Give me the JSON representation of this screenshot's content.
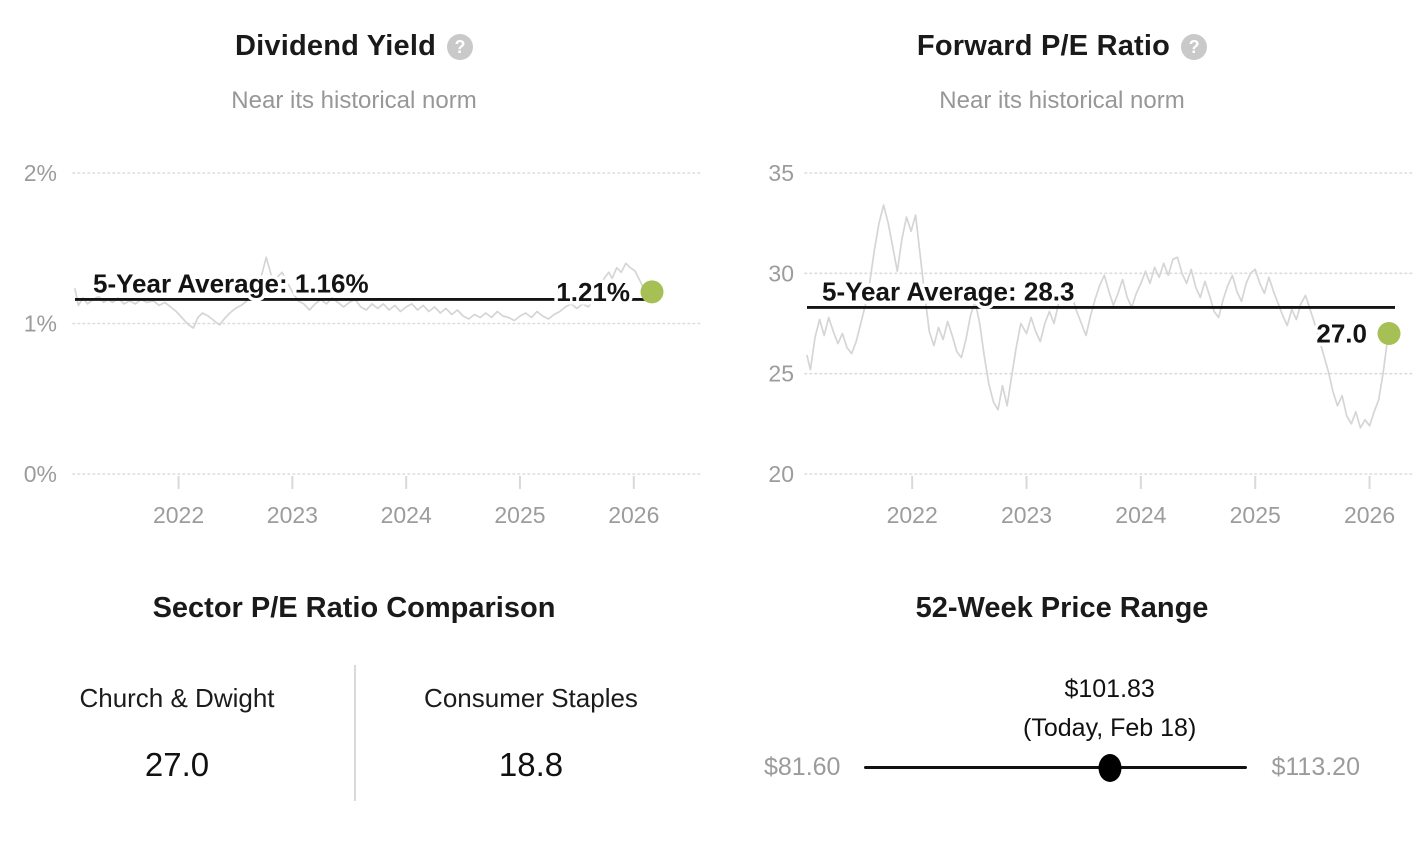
{
  "colors": {
    "accent_green": "#a6c055",
    "series_gray": "#d5d5d5",
    "average_line": "#141414",
    "grid_gray": "#dcdcdc",
    "tick_text_gray": "#9c9c9c",
    "text_dark": "#1a1a1a",
    "subtitle_gray": "#979797",
    "help_icon_gray": "#c9c9c9",
    "range_dot_black": "#000000"
  },
  "chart_data": [
    {
      "id": "dividend_yield",
      "type": "line",
      "title": "Dividend Yield",
      "subtitle": "Near its historical norm",
      "help_icon_glyph": "?",
      "legend_position": "none",
      "grid": "dotted-horizontal",
      "xlim": [
        2021.09,
        2026.16
      ],
      "ylim": [
        0,
        2.17
      ],
      "ytick_values": [
        0,
        1,
        2
      ],
      "ytick_labels": [
        "0%",
        "1%",
        "2%"
      ],
      "xtick_values": [
        2022,
        2023,
        2024,
        2025,
        2026
      ],
      "xtick_labels": [
        "2022",
        "2023",
        "2024",
        "2025",
        "2026"
      ],
      "average": {
        "value": 1.16,
        "label": "5-Year Average: 1.16%"
      },
      "current": {
        "value": 1.21,
        "label": "1.21%"
      },
      "series": [
        {
          "name": "Dividend Yield",
          "points": [
            [
              2021.09,
              1.23
            ],
            [
              2021.12,
              1.12
            ],
            [
              2021.16,
              1.17
            ],
            [
              2021.2,
              1.13
            ],
            [
              2021.25,
              1.16
            ],
            [
              2021.3,
              1.18
            ],
            [
              2021.34,
              1.14
            ],
            [
              2021.38,
              1.16
            ],
            [
              2021.42,
              1.14
            ],
            [
              2021.47,
              1.17
            ],
            [
              2021.52,
              1.13
            ],
            [
              2021.57,
              1.15
            ],
            [
              2021.62,
              1.13
            ],
            [
              2021.67,
              1.16
            ],
            [
              2021.72,
              1.14
            ],
            [
              2021.78,
              1.15
            ],
            [
              2021.83,
              1.12
            ],
            [
              2021.88,
              1.14
            ],
            [
              2021.93,
              1.11
            ],
            [
              2021.98,
              1.08
            ],
            [
              2022.04,
              1.03
            ],
            [
              2022.09,
              0.99
            ],
            [
              2022.13,
              0.97
            ],
            [
              2022.17,
              1.04
            ],
            [
              2022.21,
              1.07
            ],
            [
              2022.26,
              1.05
            ],
            [
              2022.31,
              1.02
            ],
            [
              2022.36,
              0.99
            ],
            [
              2022.4,
              1.03
            ],
            [
              2022.45,
              1.07
            ],
            [
              2022.5,
              1.1
            ],
            [
              2022.55,
              1.12
            ],
            [
              2022.6,
              1.15
            ],
            [
              2022.65,
              1.19
            ],
            [
              2022.7,
              1.25
            ],
            [
              2022.74,
              1.35
            ],
            [
              2022.77,
              1.44
            ],
            [
              2022.8,
              1.36
            ],
            [
              2022.83,
              1.28
            ],
            [
              2022.87,
              1.31
            ],
            [
              2022.91,
              1.34
            ],
            [
              2022.95,
              1.28
            ],
            [
              2023.0,
              1.21
            ],
            [
              2023.05,
              1.15
            ],
            [
              2023.1,
              1.13
            ],
            [
              2023.15,
              1.09
            ],
            [
              2023.2,
              1.13
            ],
            [
              2023.25,
              1.16
            ],
            [
              2023.3,
              1.13
            ],
            [
              2023.35,
              1.17
            ],
            [
              2023.4,
              1.14
            ],
            [
              2023.45,
              1.11
            ],
            [
              2023.5,
              1.14
            ],
            [
              2023.55,
              1.16
            ],
            [
              2023.6,
              1.11
            ],
            [
              2023.65,
              1.09
            ],
            [
              2023.7,
              1.13
            ],
            [
              2023.75,
              1.1
            ],
            [
              2023.8,
              1.13
            ],
            [
              2023.85,
              1.09
            ],
            [
              2023.9,
              1.12
            ],
            [
              2023.95,
              1.08
            ],
            [
              2024.0,
              1.11
            ],
            [
              2024.05,
              1.13
            ],
            [
              2024.1,
              1.09
            ],
            [
              2024.15,
              1.12
            ],
            [
              2024.2,
              1.08
            ],
            [
              2024.25,
              1.11
            ],
            [
              2024.3,
              1.07
            ],
            [
              2024.35,
              1.1
            ],
            [
              2024.4,
              1.06
            ],
            [
              2024.45,
              1.09
            ],
            [
              2024.5,
              1.05
            ],
            [
              2024.55,
              1.03
            ],
            [
              2024.6,
              1.06
            ],
            [
              2024.65,
              1.04
            ],
            [
              2024.7,
              1.07
            ],
            [
              2024.75,
              1.04
            ],
            [
              2024.8,
              1.08
            ],
            [
              2024.85,
              1.05
            ],
            [
              2024.9,
              1.04
            ],
            [
              2024.95,
              1.02
            ],
            [
              2025.0,
              1.05
            ],
            [
              2025.05,
              1.07
            ],
            [
              2025.1,
              1.04
            ],
            [
              2025.15,
              1.08
            ],
            [
              2025.2,
              1.05
            ],
            [
              2025.25,
              1.03
            ],
            [
              2025.3,
              1.06
            ],
            [
              2025.35,
              1.08
            ],
            [
              2025.4,
              1.11
            ],
            [
              2025.45,
              1.13
            ],
            [
              2025.5,
              1.1
            ],
            [
              2025.55,
              1.13
            ],
            [
              2025.6,
              1.11
            ],
            [
              2025.65,
              1.16
            ],
            [
              2025.7,
              1.23
            ],
            [
              2025.74,
              1.3
            ],
            [
              2025.78,
              1.34
            ],
            [
              2025.81,
              1.3
            ],
            [
              2025.85,
              1.37
            ],
            [
              2025.89,
              1.34
            ],
            [
              2025.93,
              1.4
            ],
            [
              2025.97,
              1.37
            ],
            [
              2026.01,
              1.35
            ],
            [
              2026.05,
              1.29
            ],
            [
              2026.09,
              1.23
            ],
            [
              2026.12,
              1.27
            ],
            [
              2026.16,
              1.21
            ]
          ]
        }
      ]
    },
    {
      "id": "forward_pe_ratio",
      "type": "line",
      "title": "Forward P/E Ratio",
      "subtitle": "Near its historical norm",
      "help_icon_glyph": "?",
      "legend_position": "none",
      "grid": "dotted-horizontal",
      "xlim": [
        2021.08,
        2026.17
      ],
      "ylim": [
        20,
        35
      ],
      "ytick_values": [
        20,
        25,
        30,
        35
      ],
      "ytick_labels": [
        "20",
        "25",
        "30",
        "35"
      ],
      "xtick_values": [
        2022,
        2023,
        2024,
        2025,
        2026
      ],
      "xtick_labels": [
        "2022",
        "2023",
        "2024",
        "2025",
        "2026"
      ],
      "average": {
        "value": 28.3,
        "label": "5-Year Average: 28.3"
      },
      "current": {
        "value": 27.0,
        "label": "27.0"
      },
      "series": [
        {
          "name": "Forward P/E Ratio",
          "points": [
            [
              2021.08,
              25.9
            ],
            [
              2021.11,
              25.2
            ],
            [
              2021.15,
              26.8
            ],
            [
              2021.19,
              27.7
            ],
            [
              2021.23,
              26.9
            ],
            [
              2021.27,
              27.8
            ],
            [
              2021.31,
              27.1
            ],
            [
              2021.35,
              26.5
            ],
            [
              2021.39,
              27.0
            ],
            [
              2021.43,
              26.3
            ],
            [
              2021.47,
              26.0
            ],
            [
              2021.51,
              26.6
            ],
            [
              2021.55,
              27.5
            ],
            [
              2021.59,
              28.4
            ],
            [
              2021.63,
              29.6
            ],
            [
              2021.67,
              31.2
            ],
            [
              2021.71,
              32.5
            ],
            [
              2021.75,
              33.4
            ],
            [
              2021.79,
              32.5
            ],
            [
              2021.83,
              31.3
            ],
            [
              2021.87,
              30.1
            ],
            [
              2021.91,
              31.7
            ],
            [
              2021.95,
              32.8
            ],
            [
              2021.99,
              32.1
            ],
            [
              2022.03,
              32.9
            ],
            [
              2022.07,
              30.9
            ],
            [
              2022.11,
              28.9
            ],
            [
              2022.15,
              27.1
            ],
            [
              2022.19,
              26.4
            ],
            [
              2022.23,
              27.3
            ],
            [
              2022.27,
              26.7
            ],
            [
              2022.31,
              27.6
            ],
            [
              2022.35,
              26.9
            ],
            [
              2022.39,
              26.1
            ],
            [
              2022.43,
              25.8
            ],
            [
              2022.47,
              26.7
            ],
            [
              2022.51,
              27.9
            ],
            [
              2022.55,
              28.6
            ],
            [
              2022.59,
              27.5
            ],
            [
              2022.63,
              25.9
            ],
            [
              2022.67,
              24.5
            ],
            [
              2022.71,
              23.6
            ],
            [
              2022.75,
              23.2
            ],
            [
              2022.79,
              24.4
            ],
            [
              2022.83,
              23.4
            ],
            [
              2022.87,
              24.9
            ],
            [
              2022.91,
              26.3
            ],
            [
              2022.95,
              27.5
            ],
            [
              2023.0,
              27.0
            ],
            [
              2023.04,
              27.8
            ],
            [
              2023.08,
              27.1
            ],
            [
              2023.12,
              26.6
            ],
            [
              2023.16,
              27.5
            ],
            [
              2023.2,
              28.1
            ],
            [
              2023.24,
              27.5
            ],
            [
              2023.28,
              28.5
            ],
            [
              2023.32,
              29.3
            ],
            [
              2023.36,
              29.7
            ],
            [
              2023.4,
              28.8
            ],
            [
              2023.44,
              28.1
            ],
            [
              2023.48,
              27.5
            ],
            [
              2023.52,
              26.9
            ],
            [
              2023.56,
              27.9
            ],
            [
              2023.6,
              28.7
            ],
            [
              2023.64,
              29.4
            ],
            [
              2023.68,
              29.9
            ],
            [
              2023.72,
              29.1
            ],
            [
              2023.76,
              28.4
            ],
            [
              2023.8,
              29.0
            ],
            [
              2023.84,
              29.7
            ],
            [
              2023.88,
              28.8
            ],
            [
              2023.92,
              28.3
            ],
            [
              2023.96,
              29.0
            ],
            [
              2024.0,
              29.5
            ],
            [
              2024.04,
              30.1
            ],
            [
              2024.08,
              29.5
            ],
            [
              2024.12,
              30.3
            ],
            [
              2024.16,
              29.8
            ],
            [
              2024.2,
              30.5
            ],
            [
              2024.24,
              29.9
            ],
            [
              2024.28,
              30.7
            ],
            [
              2024.32,
              30.8
            ],
            [
              2024.36,
              30.0
            ],
            [
              2024.4,
              29.5
            ],
            [
              2024.44,
              30.2
            ],
            [
              2024.48,
              29.3
            ],
            [
              2024.52,
              28.8
            ],
            [
              2024.56,
              29.6
            ],
            [
              2024.6,
              28.9
            ],
            [
              2024.64,
              28.1
            ],
            [
              2024.68,
              27.8
            ],
            [
              2024.72,
              28.7
            ],
            [
              2024.76,
              29.4
            ],
            [
              2024.8,
              29.9
            ],
            [
              2024.84,
              29.1
            ],
            [
              2024.88,
              28.6
            ],
            [
              2024.92,
              29.5
            ],
            [
              2024.96,
              30.0
            ],
            [
              2025.0,
              30.2
            ],
            [
              2025.04,
              29.5
            ],
            [
              2025.08,
              29.0
            ],
            [
              2025.12,
              29.8
            ],
            [
              2025.16,
              29.1
            ],
            [
              2025.2,
              28.5
            ],
            [
              2025.24,
              27.9
            ],
            [
              2025.28,
              27.4
            ],
            [
              2025.32,
              28.2
            ],
            [
              2025.36,
              27.7
            ],
            [
              2025.4,
              28.5
            ],
            [
              2025.44,
              28.9
            ],
            [
              2025.48,
              28.2
            ],
            [
              2025.52,
              27.5
            ],
            [
              2025.56,
              26.7
            ],
            [
              2025.6,
              25.9
            ],
            [
              2025.64,
              25.1
            ],
            [
              2025.68,
              24.1
            ],
            [
              2025.72,
              23.4
            ],
            [
              2025.76,
              23.9
            ],
            [
              2025.8,
              22.9
            ],
            [
              2025.84,
              22.5
            ],
            [
              2025.88,
              23.1
            ],
            [
              2025.92,
              22.3
            ],
            [
              2025.96,
              22.7
            ],
            [
              2026.0,
              22.4
            ],
            [
              2026.04,
              23.1
            ],
            [
              2026.08,
              23.7
            ],
            [
              2026.12,
              25.1
            ],
            [
              2026.15,
              26.4
            ],
            [
              2026.17,
              27.0
            ]
          ]
        }
      ]
    },
    {
      "id": "sector_pe_comparison",
      "type": "table",
      "title": "Sector P/E Ratio Comparison",
      "categories": [
        "Church & Dwight",
        "Consumer Staples"
      ],
      "values": [
        27.0,
        18.8
      ],
      "display_values": [
        "27.0",
        "18.8"
      ]
    },
    {
      "id": "price_range_52w",
      "type": "range",
      "title": "52-Week Price Range",
      "low_value": 81.6,
      "high_value": 113.2,
      "current_value": 101.83,
      "low_label": "$81.60",
      "high_label": "$113.20",
      "current_price_label": "$101.83",
      "current_date_label": "(Today, Feb 18)"
    }
  ]
}
